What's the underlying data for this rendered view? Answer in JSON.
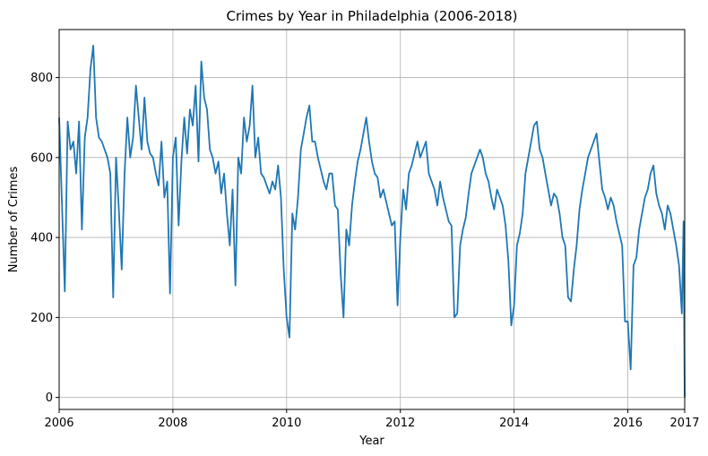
{
  "chart_data": {
    "type": "line",
    "title": "Crimes by Year in Philadelphia (2006-2018)",
    "xlabel": "Year",
    "ylabel": "Number of Crimes",
    "xlim": [
      2006,
      2017
    ],
    "ylim": [
      -30,
      920
    ],
    "grid": true,
    "x_ticks": [
      2006,
      2008,
      2010,
      2012,
      2014,
      2016,
      2017
    ],
    "y_ticks": [
      0,
      200,
      400,
      600,
      800
    ],
    "line_color": "#1f77b4",
    "series": [
      {
        "x": [
          2006.0,
          2006.05,
          2006.1,
          2006.15,
          2006.2,
          2006.25,
          2006.3,
          2006.35,
          2006.4,
          2006.45,
          2006.5,
          2006.55,
          2006.6,
          2006.65,
          2006.7,
          2006.75,
          2006.8,
          2006.85,
          2006.9,
          2006.95,
          2007.0,
          2007.05,
          2007.1,
          2007.15,
          2007.2,
          2007.25,
          2007.3,
          2007.35,
          2007.4,
          2007.45,
          2007.5,
          2007.55,
          2007.6,
          2007.65,
          2007.7,
          2007.75,
          2007.8,
          2007.85,
          2007.9,
          2007.95,
          2008.0,
          2008.05,
          2008.1,
          2008.15,
          2008.2,
          2008.25,
          2008.3,
          2008.35,
          2008.4,
          2008.45,
          2008.5,
          2008.55,
          2008.6,
          2008.65,
          2008.7,
          2008.75,
          2008.8,
          2008.85,
          2008.9,
          2008.95,
          2009.0,
          2009.05,
          2009.1,
          2009.15,
          2009.2,
          2009.25,
          2009.3,
          2009.35,
          2009.4,
          2009.45,
          2009.5,
          2009.55,
          2009.6,
          2009.65,
          2009.7,
          2009.75,
          2009.8,
          2009.85,
          2009.9,
          2009.95,
          2010.0,
          2010.05,
          2010.1,
          2010.15,
          2010.2,
          2010.25,
          2010.3,
          2010.35,
          2010.4,
          2010.45,
          2010.5,
          2010.55,
          2010.6,
          2010.65,
          2010.7,
          2010.75,
          2010.8,
          2010.85,
          2010.9,
          2010.95,
          2011.0,
          2011.05,
          2011.1,
          2011.15,
          2011.2,
          2011.25,
          2011.3,
          2011.35,
          2011.4,
          2011.45,
          2011.5,
          2011.55,
          2011.6,
          2011.65,
          2011.7,
          2011.75,
          2011.8,
          2011.85,
          2011.9,
          2011.95,
          2012.0,
          2012.05,
          2012.1,
          2012.15,
          2012.2,
          2012.25,
          2012.3,
          2012.35,
          2012.4,
          2012.45,
          2012.5,
          2012.55,
          2012.6,
          2012.65,
          2012.7,
          2012.75,
          2012.8,
          2012.85,
          2012.9,
          2012.95,
          2013.0,
          2013.05,
          2013.1,
          2013.15,
          2013.2,
          2013.25,
          2013.3,
          2013.35,
          2013.4,
          2013.45,
          2013.5,
          2013.55,
          2013.6,
          2013.65,
          2013.7,
          2013.75,
          2013.8,
          2013.85,
          2013.9,
          2013.95,
          2014.0,
          2014.05,
          2014.1,
          2014.15,
          2014.2,
          2014.25,
          2014.3,
          2014.35,
          2014.4,
          2014.45,
          2014.5,
          2014.55,
          2014.6,
          2014.65,
          2014.7,
          2014.75,
          2014.8,
          2014.85,
          2014.9,
          2014.95,
          2015.0,
          2015.05,
          2015.1,
          2015.15,
          2015.2,
          2015.25,
          2015.3,
          2015.35,
          2015.4,
          2015.45,
          2015.5,
          2015.55,
          2015.6,
          2015.65,
          2015.7,
          2015.75,
          2015.8,
          2015.85,
          2015.9,
          2015.95,
          2016.0,
          2016.05,
          2016.1,
          2016.15,
          2016.2,
          2016.25,
          2016.3,
          2016.35,
          2016.4,
          2016.45,
          2016.5,
          2016.55,
          2016.6,
          2016.65,
          2016.7,
          2016.75,
          2016.8,
          2016.85,
          2016.9,
          2016.95,
          2016.98,
          2017.0
        ],
        "y": [
          700,
          480,
          265,
          690,
          620,
          640,
          560,
          690,
          420,
          650,
          700,
          820,
          880,
          700,
          650,
          640,
          620,
          600,
          560,
          250,
          600,
          470,
          320,
          560,
          700,
          600,
          650,
          780,
          700,
          620,
          750,
          640,
          610,
          600,
          560,
          530,
          640,
          500,
          540,
          260,
          600,
          650,
          430,
          590,
          700,
          610,
          720,
          680,
          780,
          590,
          840,
          750,
          720,
          620,
          600,
          560,
          590,
          510,
          560,
          460,
          380,
          520,
          280,
          600,
          560,
          700,
          640,
          680,
          780,
          600,
          650,
          560,
          550,
          530,
          510,
          540,
          520,
          580,
          500,
          320,
          200,
          150,
          460,
          420,
          500,
          620,
          660,
          700,
          730,
          640,
          640,
          600,
          570,
          540,
          520,
          560,
          560,
          480,
          470,
          310,
          200,
          420,
          380,
          480,
          540,
          590,
          620,
          660,
          700,
          640,
          590,
          560,
          550,
          500,
          520,
          490,
          460,
          430,
          440,
          230,
          400,
          520,
          470,
          560,
          580,
          610,
          640,
          600,
          620,
          640,
          560,
          540,
          520,
          480,
          540,
          500,
          470,
          440,
          430,
          200,
          210,
          380,
          420,
          450,
          510,
          560,
          580,
          600,
          620,
          600,
          560,
          540,
          500,
          470,
          520,
          500,
          480,
          430,
          340,
          180,
          230,
          380,
          410,
          460,
          560,
          600,
          640,
          680,
          690,
          620,
          600,
          560,
          520,
          480,
          510,
          500,
          460,
          400,
          380,
          250,
          240,
          320,
          380,
          470,
          520,
          560,
          600,
          620,
          640,
          660,
          590,
          520,
          500,
          470,
          500,
          480,
          440,
          410,
          380,
          190,
          190,
          70,
          330,
          350,
          420,
          460,
          500,
          520,
          560,
          580,
          510,
          480,
          460,
          420,
          480,
          460,
          420,
          380,
          330,
          210,
          440,
          0
        ]
      }
    ]
  }
}
